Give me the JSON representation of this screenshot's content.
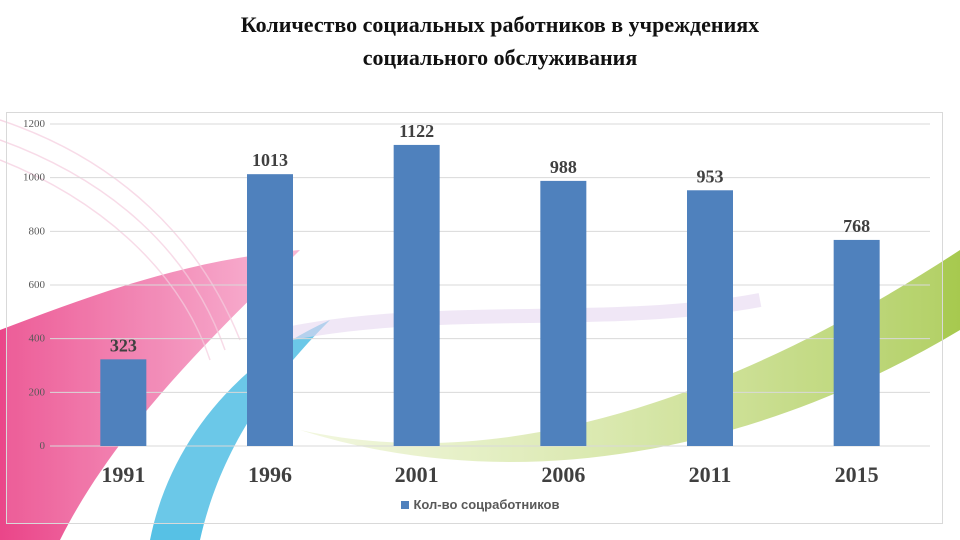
{
  "title_line1": "Количество социальных  работников в учреждениях",
  "title_line2": "социального обслуживания",
  "chart_data": {
    "type": "bar",
    "categories": [
      "1991",
      "1996",
      "2001",
      "2006",
      "2011",
      "2015"
    ],
    "series": [
      {
        "name": "Кол-во соцработников",
        "values": [
          323,
          1013,
          1122,
          988,
          953,
          768
        ],
        "color": "#4f81bd"
      }
    ],
    "ylim": [
      0,
      1200
    ],
    "yticks": [
      0,
      200,
      400,
      600,
      800,
      1000,
      1200
    ],
    "grid": true,
    "legend": "bottom",
    "data_labels": true
  }
}
